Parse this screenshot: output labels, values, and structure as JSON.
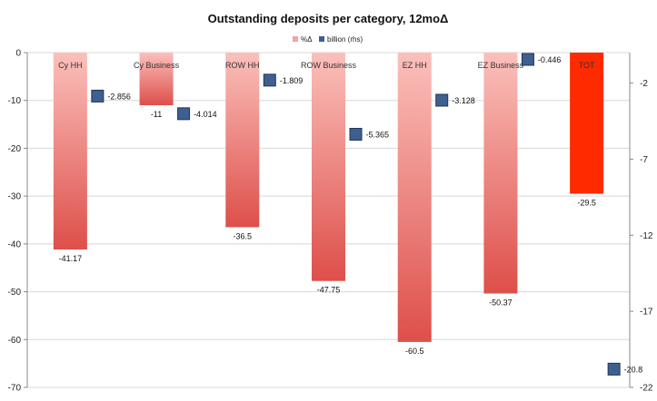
{
  "chart_data": {
    "type": "bar",
    "title": "Outstanding deposits per category, 12moΔ",
    "categories": [
      "Cy HH",
      "Cy Business",
      "ROW HH",
      "ROW Business",
      "EZ HH",
      "EZ Business",
      "TOT"
    ],
    "series": [
      {
        "name": "%Δ",
        "axis": "left",
        "kind": "bar",
        "values": [
          -41.17,
          -11,
          -36.5,
          -47.75,
          -60.5,
          -50.37,
          -29.5
        ],
        "labels": [
          "-41.17",
          "-11",
          "-36.5",
          "-47.75",
          "-60.5",
          "-50.37",
          "-29.5"
        ],
        "color": "#e8615c",
        "highlight_color": "#ff2a00"
      },
      {
        "name": "billion (rhs)",
        "axis": "right",
        "kind": "marker",
        "values": [
          -2.856,
          -4.014,
          -1.809,
          -5.365,
          -3.128,
          -0.446,
          -20.8
        ],
        "labels": [
          "-2.856",
          "-4.014",
          "-1.809",
          "-5.365",
          "-3.128",
          "-0.446",
          "-20.8"
        ],
        "color": "#3f5f8f"
      }
    ],
    "y_left": {
      "min": -70,
      "max": 0,
      "ticks": [
        0,
        -10,
        -20,
        -30,
        -40,
        -50,
        -60,
        -70
      ]
    },
    "y_right": {
      "min": -22,
      "max": 0,
      "ticks": [
        -2,
        -7,
        -12,
        -17,
        -22
      ]
    },
    "legend": {
      "position": "top-center"
    },
    "grid": true
  }
}
